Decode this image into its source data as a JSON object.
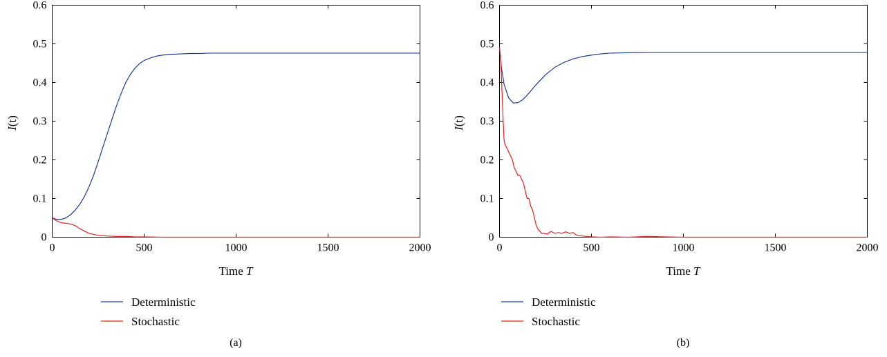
{
  "colors": {
    "deterministic": "#1f3a93",
    "stochastic": "#e8201e",
    "axis": "#000000"
  },
  "chart_data": [
    {
      "type": "line",
      "caption": "(a)",
      "xlabel": {
        "text": "Time ",
        "var": "T"
      },
      "ylabel": {
        "var": "I",
        "rest": "(t)"
      },
      "xlim": [
        0,
        2000
      ],
      "ylim": [
        0,
        0.6
      ],
      "xticks": [
        "0",
        "500",
        "1000",
        "1500",
        "2000"
      ],
      "xtick_values": [
        0,
        500,
        1000,
        1500,
        2000
      ],
      "yticks": [
        "0",
        "0.1",
        "0.2",
        "0.3",
        "0.4",
        "0.5",
        "0.6"
      ],
      "ytick_values": [
        0,
        0.1,
        0.2,
        0.3,
        0.4,
        0.5,
        0.6
      ],
      "legend": [
        "Deterministic",
        "Stochastic"
      ],
      "series": [
        {
          "name": "Deterministic",
          "x": [
            0,
            25,
            50,
            75,
            100,
            125,
            150,
            175,
            200,
            225,
            250,
            275,
            300,
            325,
            350,
            375,
            400,
            425,
            450,
            475,
            500,
            525,
            550,
            575,
            600,
            650,
            700,
            750,
            800,
            850,
            900,
            1000,
            1100,
            1200,
            1400,
            1600,
            1800,
            2000
          ],
          "y": [
            0.05,
            0.046,
            0.046,
            0.05,
            0.058,
            0.07,
            0.085,
            0.105,
            0.13,
            0.16,
            0.195,
            0.232,
            0.268,
            0.305,
            0.34,
            0.372,
            0.4,
            0.421,
            0.437,
            0.449,
            0.457,
            0.462,
            0.466,
            0.469,
            0.471,
            0.473,
            0.474,
            0.475,
            0.475,
            0.476,
            0.476,
            0.476,
            0.476,
            0.476,
            0.476,
            0.476,
            0.476,
            0.476
          ]
        },
        {
          "name": "Stochastic",
          "x": [
            0,
            25,
            50,
            75,
            100,
            125,
            150,
            175,
            200,
            225,
            250,
            275,
            300,
            350,
            400,
            450,
            500,
            600,
            800,
            1000,
            1500,
            2000
          ],
          "y": [
            0.05,
            0.042,
            0.037,
            0.036,
            0.034,
            0.03,
            0.022,
            0.016,
            0.01,
            0.007,
            0.005,
            0.004,
            0.003,
            0.002,
            0.002,
            0.001,
            0.001,
            0.0,
            0.0,
            0.0,
            0.0,
            0.0
          ]
        }
      ]
    },
    {
      "type": "line",
      "caption": "(b)",
      "xlabel": {
        "text": "Time ",
        "var": "T"
      },
      "ylabel": {
        "var": "I",
        "rest": "(t)"
      },
      "xlim": [
        0,
        2000
      ],
      "ylim": [
        0,
        0.6
      ],
      "xticks": [
        "0",
        "500",
        "1000",
        "1500",
        "2000"
      ],
      "xtick_values": [
        0,
        500,
        1000,
        1500,
        2000
      ],
      "yticks": [
        "0",
        "0.1",
        "0.2",
        "0.3",
        "0.4",
        "0.5",
        "0.6"
      ],
      "ytick_values": [
        0,
        0.1,
        0.2,
        0.3,
        0.4,
        0.5,
        0.6
      ],
      "legend": [
        "Deterministic",
        "Stochastic"
      ],
      "series": [
        {
          "name": "Deterministic",
          "x": [
            0,
            10,
            25,
            50,
            75,
            100,
            125,
            150,
            200,
            250,
            300,
            350,
            400,
            450,
            500,
            550,
            600,
            700,
            800,
            900,
            1000,
            1200,
            1400,
            1600,
            1800,
            2000
          ],
          "y": [
            0.49,
            0.44,
            0.395,
            0.36,
            0.347,
            0.348,
            0.355,
            0.367,
            0.395,
            0.42,
            0.439,
            0.452,
            0.461,
            0.467,
            0.471,
            0.474,
            0.476,
            0.477,
            0.478,
            0.478,
            0.478,
            0.478,
            0.478,
            0.478,
            0.478,
            0.478
          ]
        },
        {
          "name": "Stochastic",
          "x": [
            0,
            5,
            10,
            15,
            20,
            25,
            30,
            40,
            50,
            60,
            70,
            80,
            90,
            100,
            110,
            120,
            130,
            140,
            150,
            160,
            170,
            180,
            190,
            200,
            210,
            220,
            230,
            240,
            260,
            280,
            300,
            320,
            340,
            360,
            380,
            400,
            420,
            450,
            500,
            550,
            600,
            700,
            800,
            900,
            1000,
            1500,
            2000
          ],
          "y": [
            0.49,
            0.47,
            0.42,
            0.36,
            0.3,
            0.25,
            0.24,
            0.23,
            0.22,
            0.21,
            0.2,
            0.18,
            0.17,
            0.16,
            0.16,
            0.15,
            0.14,
            0.12,
            0.1,
            0.1,
            0.08,
            0.07,
            0.05,
            0.03,
            0.02,
            0.015,
            0.01,
            0.01,
            0.008,
            0.015,
            0.01,
            0.012,
            0.01,
            0.014,
            0.01,
            0.012,
            0.005,
            0.003,
            0.001,
            0.0,
            0.001,
            0.0,
            0.002,
            0.001,
            0.0,
            0.0,
            0.0
          ]
        }
      ]
    }
  ]
}
